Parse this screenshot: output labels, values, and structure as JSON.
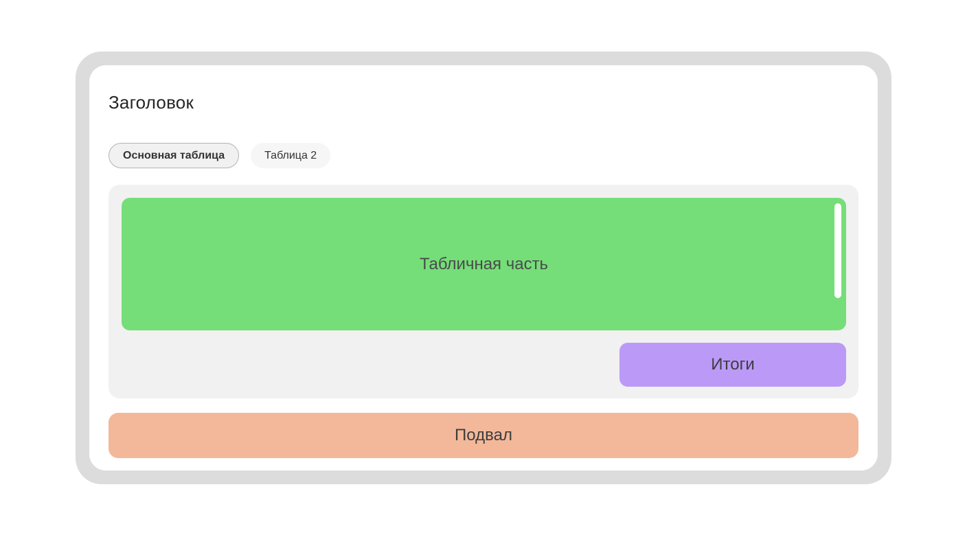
{
  "window": {
    "title": "Заголовок"
  },
  "tabs": [
    {
      "label": "Основная таблица",
      "active": true
    },
    {
      "label": "Таблица 2",
      "active": false
    }
  ],
  "main": {
    "table_section_label": "Табличная часть",
    "totals_label": "Итоги",
    "footer_label": "Подвал"
  },
  "colors": {
    "frame_border": "#dcdcdc",
    "container_bg": "#f1f1f1",
    "table_green": "#75de79",
    "totals_purple": "#bb9af7",
    "footer_orange": "#f3b899",
    "scrollbar": "#ffffff"
  }
}
